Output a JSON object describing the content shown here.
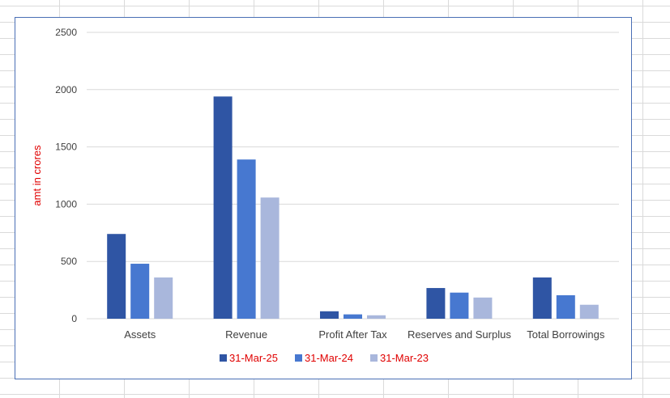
{
  "chart_data": {
    "type": "bar",
    "title": "",
    "xlabel": "",
    "ylabel": "amt in crores",
    "ylim": [
      0,
      2500
    ],
    "yticks": [
      0,
      500,
      1000,
      1500,
      2000,
      2500
    ],
    "grid": true,
    "legend_position": "bottom",
    "categories": [
      "Assets",
      "Revenue",
      "Profit After Tax",
      "Reserves and Surplus",
      "Total Borrowings"
    ],
    "series": [
      {
        "name": "31-Mar-25",
        "color": "#2f55a4",
        "values": [
          740,
          1940,
          65,
          268,
          360
        ]
      },
      {
        "name": "31-Mar-24",
        "color": "#4778d0",
        "values": [
          480,
          1390,
          38,
          228,
          205
        ]
      },
      {
        "name": "31-Mar-23",
        "color": "#a9b7dc",
        "values": [
          360,
          1058,
          30,
          185,
          122
        ]
      }
    ],
    "colors": {
      "ylabel": "#e00000",
      "legend_text": "#e00000",
      "tick_text": "#404040",
      "gridline": "#d9d9d9",
      "frame": "#4a6fb5"
    }
  }
}
